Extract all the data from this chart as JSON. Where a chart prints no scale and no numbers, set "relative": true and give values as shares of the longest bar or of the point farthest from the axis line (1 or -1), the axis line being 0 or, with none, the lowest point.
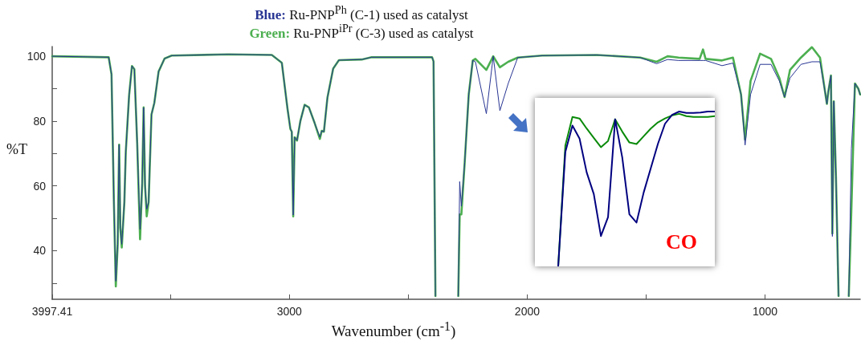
{
  "chart_data": [
    {
      "type": "line",
      "title": "Blue: Ru-PNP$^{Ph}$ (C-1) used as catalyst",
      "subtitle": "Green: Ru-PNP$^{iPr}$ (C-3) used as catalyst",
      "xlabel": "Wavenumber (cm$^{-1}$)",
      "ylabel": "%T",
      "xlim": [
        3997.41,
        600
      ],
      "xticks": [
        3997.41,
        {
          "value": 3500,
          "label": null
        },
        3000,
        {
          "value": 2500,
          "label": null
        },
        2000,
        {
          "value": 1500,
          "label": null
        },
        1000
      ],
      "ylim": [
        25,
        103
      ],
      "yticks": [
        {
          "value": 30,
          "label": null
        },
        40,
        {
          "value": 50,
          "label": null
        },
        60,
        {
          "value": 70,
          "label": null
        },
        80,
        {
          "value": 90,
          "label": null
        },
        100
      ],
      "marker": "none",
      "line_style": "solid",
      "x": [
        3997.41,
        3760,
        3748,
        3738,
        3730,
        3722,
        3716,
        3711,
        3705,
        3694,
        3688,
        3674,
        3662,
        3652,
        3640,
        3628,
        3619,
        3613,
        3607,
        3600,
        3592,
        3580,
        3568,
        3550,
        3525,
        3495,
        3255,
        3074,
        3032,
        3008,
        2996,
        2990,
        2984,
        2978,
        2968,
        2954,
        2936,
        2918,
        2894,
        2872,
        2864,
        2855,
        2840,
        2816,
        2792,
        2696,
        2654,
        2400,
        2394,
        2386,
        2340,
        2290,
        2284,
        2277,
        2263,
        2246,
        2229,
        2218,
        2172,
        2143,
        2115,
        2080,
        2040,
        1937,
        1708,
        1525,
        1456,
        1410,
        1364,
        1275,
        1261,
        1250,
        1181,
        1135,
        1101,
        1084,
        1061,
        1021,
        975,
        940,
        918,
        895,
        849,
        803,
        769,
        746,
        740,
        734,
        723,
        717,
        711,
        702,
        691,
        670,
        648,
        637,
        622,
        608,
        600
      ],
      "series": [
        {
          "color": "#4caf50",
          "values": [
            100,
            99.7,
            94.4,
            55,
            29,
            42,
            72.7,
            47,
            41,
            55,
            70.5,
            88,
            97,
            96,
            73,
            43.5,
            60.8,
            84.2,
            60,
            50.6,
            55,
            82,
            85.6,
            95.3,
            99.3,
            100.2,
            100.6,
            100.4,
            98,
            83.8,
            77.6,
            76.7,
            50.6,
            75,
            74,
            80,
            85,
            84.2,
            79.4,
            74.5,
            77,
            76.7,
            87.3,
            96.2,
            98.8,
            99,
            99.7,
            99.7,
            98.4,
            26,
            null,
            26,
            51.2,
            51.2,
            67.2,
            88.2,
            98.7,
            99.2,
            95.8,
            100,
            96.6,
            98.3,
            99.6,
            100.2,
            100.4,
            99.6,
            98.3,
            100,
            99.6,
            99.2,
            102.1,
            99.2,
            98.7,
            99.6,
            88.2,
            74.3,
            92.4,
            100.8,
            99.2,
            93.3,
            87.4,
            95.8,
            99.6,
            102.8,
            99.6,
            88.2,
            85.3,
            89.1,
            94.1,
            45.3,
            86.1,
            63,
            26,
            null,
            26,
            52.9,
            91.6,
            90,
            88.2
          ]
        },
        {
          "color": "#283593",
          "values": [
            100,
            99.7,
            94.4,
            55,
            30.6,
            42,
            72.7,
            47,
            42,
            55,
            70.5,
            88,
            97,
            96,
            73,
            46.6,
            60.8,
            84.2,
            60,
            52.8,
            55,
            82,
            85.6,
            95.3,
            99.3,
            100.2,
            100.6,
            100.4,
            98,
            83.8,
            77.6,
            76.7,
            51,
            75,
            74,
            80,
            85,
            84.2,
            79.4,
            75,
            77,
            76.7,
            87.3,
            96.2,
            98.8,
            99,
            99.7,
            99.7,
            98.4,
            26,
            null,
            26,
            61.3,
            53.7,
            67.2,
            88.2,
            98.7,
            98.3,
            82.3,
            100,
            83.2,
            91.6,
            99.6,
            100.2,
            100.4,
            99.6,
            97.7,
            99,
            98.7,
            98.7,
            98.7,
            98.7,
            97.1,
            97.9,
            88.2,
            72.6,
            88.2,
            97.5,
            97.5,
            92.4,
            87.4,
            93.3,
            97.5,
            98.3,
            98.3,
            88.2,
            85.3,
            89.1,
            94.1,
            44.4,
            86.1,
            63,
            26,
            null,
            26,
            71.4,
            91.6,
            90,
            88.2
          ]
        }
      ]
    },
    {
      "type": "line",
      "relative": true,
      "annotations": [
        "CO"
      ],
      "marker": "none",
      "line_style": "solid",
      "categories": [
        null,
        null,
        null,
        null,
        null,
        null,
        null,
        null,
        null,
        null,
        null,
        null,
        null,
        null,
        null,
        null,
        null,
        null,
        null,
        null,
        null,
        null,
        null
      ],
      "series": [
        {
          "color": "#0a8a0a",
          "values": [
            0,
            0.78,
            0.965,
            0.955,
            0.89,
            0.83,
            0.77,
            0.81,
            0.95,
            0.87,
            0.8,
            0.79,
            0.84,
            0.89,
            0.93,
            0.955,
            0.975,
            0.985,
            0.97,
            0.965,
            0.965,
            0.965,
            0.97
          ]
        },
        {
          "color": "#000080",
          "values": [
            0,
            0.738,
            0.909,
            0.825,
            0.607,
            0.467,
            0.196,
            0.318,
            0.95,
            0.703,
            0.336,
            0.283,
            0.476,
            0.633,
            0.79,
            0.921,
            0.979,
            1,
            0.991,
            0.991,
            0.993,
            1,
            1
          ]
        }
      ]
    }
  ]
}
